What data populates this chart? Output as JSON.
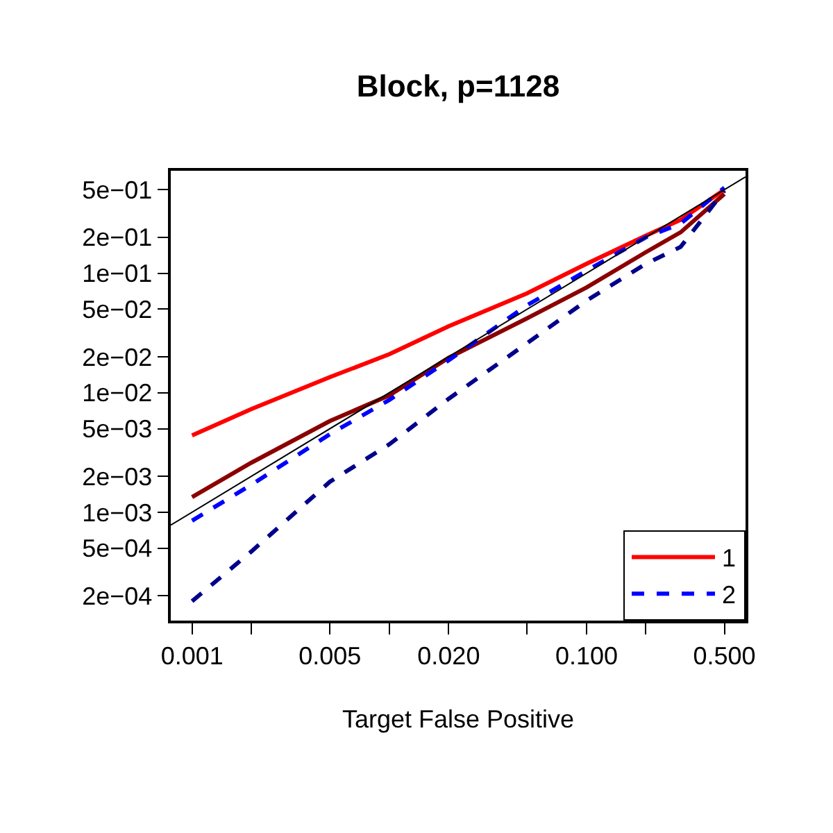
{
  "chart_data": {
    "type": "line",
    "title": "Block, p=1128",
    "xlabel": "Target False Positive",
    "x": [
      0.001,
      0.002,
      0.005,
      0.01,
      0.02,
      0.05,
      0.1,
      0.2,
      0.3,
      0.5
    ],
    "series": [
      {
        "name": "1",
        "color": "#ff0000",
        "line_style": "solid",
        "values": [
          0.0044,
          0.0073,
          0.0135,
          0.021,
          0.036,
          0.068,
          0.12,
          0.206,
          0.28,
          0.5
        ]
      },
      {
        "color": "#8b0000",
        "line_style": "solid",
        "values": [
          0.00134,
          0.0026,
          0.0058,
          0.0095,
          0.0196,
          0.042,
          0.076,
          0.15,
          0.22,
          0.46
        ]
      },
      {
        "name": "2",
        "color": "#0000ff",
        "line_style": "dashed",
        "values": [
          0.00085,
          0.0017,
          0.0045,
          0.0087,
          0.0187,
          0.054,
          0.105,
          0.2,
          0.26,
          0.52
        ]
      },
      {
        "color": "#00008b",
        "line_style": "dashed",
        "values": [
          0.00018,
          0.00047,
          0.0018,
          0.0037,
          0.0089,
          0.026,
          0.059,
          0.12,
          0.166,
          0.49
        ]
      },
      {
        "color": "#000000",
        "line_style": "solid",
        "x": [
          0.00078,
          0.64
        ],
        "values": [
          0.00078,
          0.64
        ]
      }
    ],
    "log": "xy",
    "legend": "bottom right",
    "marker": "none",
    "xlim": [
      0.00078,
      0.64
    ],
    "ylim": [
      0.000124,
      0.72
    ],
    "xticks": [
      {
        "value": 0.001,
        "label": "0.001"
      },
      {
        "value": 0.002,
        "label": null
      },
      {
        "value": 0.005,
        "label": "0.005"
      },
      {
        "value": 0.01,
        "label": null
      },
      {
        "value": 0.02,
        "label": "0.020"
      },
      {
        "value": 0.05,
        "label": null
      },
      {
        "value": 0.1,
        "label": "0.100"
      },
      {
        "value": 0.2,
        "label": null
      },
      {
        "value": 0.5,
        "label": "0.500"
      }
    ],
    "yticks": [
      {
        "value": 0.5,
        "label": "5e−01"
      },
      {
        "value": 0.2,
        "label": "2e−01"
      },
      {
        "value": 0.1,
        "label": "1e−01"
      },
      {
        "value": 0.05,
        "label": "5e−02"
      },
      {
        "value": 0.02,
        "label": "2e−02"
      },
      {
        "value": 0.01,
        "label": "1e−02"
      },
      {
        "value": 0.005,
        "label": "5e−03"
      },
      {
        "value": 0.002,
        "label": "2e−03"
      },
      {
        "value": 0.001,
        "label": "1e−03"
      },
      {
        "value": 0.0005,
        "label": "5e−04"
      },
      {
        "value": 0.0002,
        "label": "2e−04"
      }
    ]
  }
}
